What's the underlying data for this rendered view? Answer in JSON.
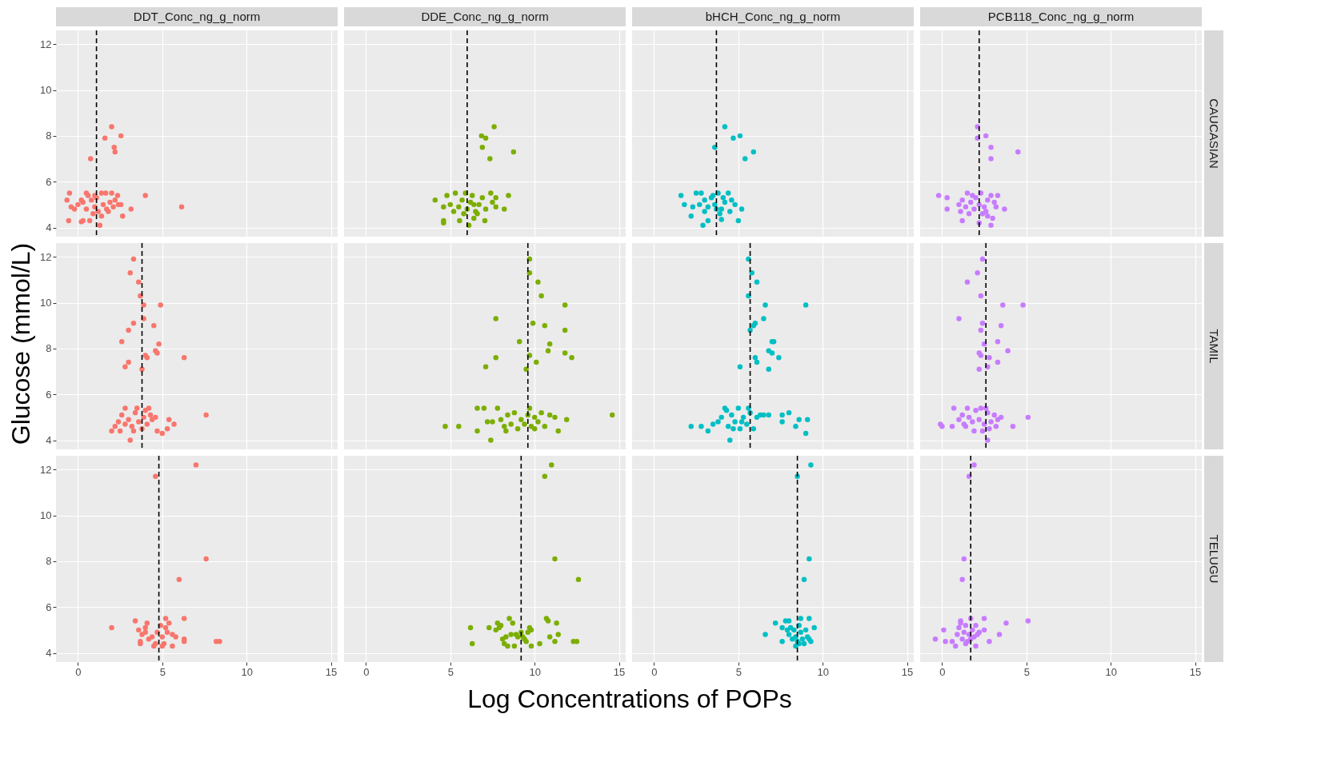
{
  "chart_data": [
    {
      "type": "scatter",
      "title": "DDT_Conc_ng_g_norm",
      "color": "#f8766d",
      "marker": "circle",
      "grid": true,
      "tick_labels": "y",
      "xlim": [
        -1.3,
        15.4
      ],
      "ylim": [
        3.6,
        12.6
      ],
      "xticks": [
        0,
        5,
        10,
        15
      ],
      "yticks": [
        4,
        6,
        8,
        10,
        12
      ],
      "ref_lines": [
        {
          "axis": "x",
          "value": 1.1,
          "color": "#000000",
          "line_style": "dashed"
        }
      ],
      "x": [
        2.0,
        1.6,
        2.55,
        2.15,
        2.2,
        0.75,
        -0.5,
        -0.65,
        -0.4,
        -0.55,
        0.2,
        0.3,
        0.5,
        0.7,
        1.3,
        4.0,
        6.15,
        2.65,
        3.15,
        2.55,
        2.35,
        2.0,
        1.4,
        1.65,
        0,
        0.3,
        0.5,
        0.8,
        1.0,
        1.1,
        1.2,
        1.5,
        1.7,
        1.9,
        2.1,
        2.2,
        0.9,
        1.4,
        0.6,
        1.8,
        2.4,
        -0.2,
        0.2,
        1.0
      ],
      "values": [
        8.4,
        7.9,
        8.0,
        7.5,
        7.3,
        7.0,
        5.5,
        5.2,
        4.9,
        4.3,
        4.25,
        4.3,
        5.5,
        4.3,
        4.1,
        5.4,
        4.9,
        4.5,
        4.8,
        5.0,
        5.4,
        5.5,
        5.5,
        5.5,
        5.0,
        5.1,
        4.8,
        5.2,
        4.9,
        5.3,
        4.7,
        5.0,
        4.8,
        5.1,
        4.9,
        5.2,
        4.6,
        4.5,
        5.4,
        4.7,
        5.0,
        4.8,
        5.2,
        5.4
      ]
    },
    {
      "type": "scatter",
      "title": "DDE_Conc_ng_g_norm",
      "color": "#7cae00",
      "marker": "circle",
      "grid": true,
      "tick_labels": false,
      "xlim": [
        -1.3,
        15.4
      ],
      "ylim": [
        3.6,
        12.6
      ],
      "xticks": [
        0,
        5,
        10,
        15
      ],
      "yticks": [
        4,
        6,
        8,
        10,
        12
      ],
      "ref_lines": [
        {
          "axis": "x",
          "value": 6.0,
          "color": "#000000",
          "line_style": "dashed"
        }
      ],
      "x": [
        7.6,
        6.85,
        7.1,
        6.9,
        7.35,
        8.75,
        4.1,
        4.6,
        4.6,
        5.55,
        6.1,
        7.05,
        8.45,
        8.2,
        7.7,
        7.4,
        6.4,
        4.8,
        5.0,
        5.3,
        5.5,
        5.7,
        5.9,
        6.0,
        6.2,
        6.3,
        6.5,
        6.7,
        6.9,
        7.1,
        7.5,
        7.7,
        4.6,
        5.2,
        5.8,
        6.4,
        6.6
      ],
      "values": [
        8.4,
        8.0,
        7.9,
        7.5,
        7.0,
        7.3,
        5.2,
        4.3,
        4.2,
        4.3,
        4.1,
        4.3,
        5.4,
        4.8,
        4.9,
        5.5,
        4.4,
        5.4,
        5.0,
        5.5,
        4.9,
        5.2,
        5.5,
        4.8,
        5.1,
        5.4,
        4.7,
        5.0,
        5.3,
        4.8,
        5.1,
        5.3,
        4.9,
        4.7,
        4.6,
        5.0,
        4.6
      ]
    },
    {
      "type": "scatter",
      "title": "bHCH_Conc_ng_g_norm",
      "color": "#00bfc4",
      "marker": "circle",
      "grid": true,
      "tick_labels": false,
      "xlim": [
        -1.3,
        15.4
      ],
      "ylim": [
        3.6,
        12.6
      ],
      "xticks": [
        0,
        5,
        10,
        15
      ],
      "yticks": [
        4,
        6,
        8,
        10,
        12
      ],
      "ref_lines": [
        {
          "axis": "x",
          "value": 3.7,
          "color": "#000000",
          "line_style": "dashed"
        }
      ],
      "x": [
        4.2,
        4.7,
        5.1,
        3.6,
        5.9,
        5.4,
        1.6,
        1.8,
        2.2,
        2.9,
        3.2,
        5.0,
        5.2,
        4.0,
        2.5,
        2.8,
        3.0,
        3.2,
        3.4,
        3.6,
        3.8,
        4.0,
        4.2,
        4.4,
        4.6,
        4.8,
        3.0,
        2.3,
        3.9,
        4.5,
        3.5,
        4.1,
        2.7,
        3.7
      ],
      "values": [
        8.4,
        7.9,
        8.0,
        7.5,
        7.3,
        7.0,
        5.4,
        5.0,
        4.5,
        4.1,
        4.3,
        4.3,
        4.8,
        4.35,
        5.5,
        5.5,
        5.2,
        4.9,
        5.3,
        5.0,
        5.5,
        4.8,
        5.1,
        5.5,
        5.2,
        5.0,
        4.7,
        4.9,
        4.6,
        4.7,
        5.4,
        5.3,
        5.0,
        4.8
      ]
    },
    {
      "type": "scatter",
      "title": "PCB118_Conc_ng_g_norm",
      "y2label": "CAUCASIAN",
      "color": "#c77cff",
      "marker": "circle",
      "grid": true,
      "tick_labels": false,
      "xlim": [
        -1.3,
        15.4
      ],
      "ylim": [
        3.6,
        12.6
      ],
      "xticks": [
        0,
        5,
        10,
        15
      ],
      "yticks": [
        4,
        6,
        8,
        10,
        12
      ],
      "ref_lines": [
        {
          "axis": "x",
          "value": 2.2,
          "color": "#000000",
          "line_style": "dashed"
        }
      ],
      "x": [
        2.1,
        2.1,
        2.6,
        2.9,
        4.5,
        2.9,
        -0.2,
        0.3,
        0.3,
        3.7,
        1.2,
        2.2,
        2.9,
        3.0,
        2.7,
        1.0,
        1.2,
        1.4,
        1.5,
        1.7,
        1.9,
        2.0,
        2.2,
        2.3,
        2.5,
        2.7,
        2.9,
        3.1,
        3.3,
        3.2,
        1.6,
        2.4,
        1.1,
        1.8,
        2.6
      ],
      "values": [
        8.4,
        7.9,
        8.0,
        7.5,
        7.3,
        7.0,
        5.4,
        5.3,
        4.8,
        4.8,
        4.3,
        4.2,
        4.1,
        4.4,
        4.5,
        5.0,
        5.2,
        4.9,
        5.5,
        5.1,
        4.8,
        5.3,
        5.0,
        5.5,
        4.9,
        5.2,
        5.4,
        5.1,
        5.4,
        4.9,
        4.6,
        4.6,
        4.7,
        5.4,
        4.7
      ]
    },
    {
      "type": "scatter",
      "ylabel": "Glucose (mmol/L)",
      "color": "#f8766d",
      "marker": "circle",
      "grid": true,
      "tick_labels": "y",
      "xlim": [
        -1.3,
        15.4
      ],
      "ylim": [
        3.6,
        12.6
      ],
      "xticks": [
        0,
        5,
        10,
        15
      ],
      "yticks": [
        4,
        6,
        8,
        10,
        12
      ],
      "ref_lines": [
        {
          "axis": "x",
          "value": 3.8,
          "color": "#000000",
          "line_style": "dashed"
        }
      ],
      "x": [
        3.3,
        3.1,
        3.6,
        3.7,
        3.9,
        4.9,
        3.9,
        3.3,
        3.0,
        4.5,
        2.6,
        4.8,
        4.6,
        4.7,
        4.0,
        4.1,
        6.3,
        3.0,
        2.8,
        3.8,
        7.6,
        2.0,
        3.1,
        5.0,
        5.7,
        5.3,
        5.4,
        4.7,
        2.2,
        2.4,
        2.6,
        2.8,
        2.8,
        3.0,
        3.2,
        3.4,
        3.5,
        3.6,
        3.8,
        3.9,
        4.0,
        4.1,
        4.3,
        4.4,
        4.2,
        3.3,
        4.6,
        2.5
      ],
      "values": [
        11.9,
        11.3,
        10.9,
        10.3,
        9.9,
        9.9,
        9.3,
        9.1,
        8.8,
        9.0,
        8.3,
        8.2,
        7.9,
        7.8,
        7.7,
        7.6,
        7.6,
        7.4,
        7.2,
        7.1,
        5.1,
        4.4,
        4.0,
        4.3,
        4.7,
        4.5,
        4.9,
        4.4,
        4.6,
        4.8,
        5.1,
        4.7,
        5.4,
        4.9,
        4.6,
        5.2,
        5.4,
        4.8,
        4.5,
        5.0,
        5.3,
        4.7,
        5.1,
        4.9,
        5.4,
        4.4,
        5.0,
        4.4
      ]
    },
    {
      "type": "scatter",
      "color": "#7cae00",
      "marker": "circle",
      "grid": true,
      "tick_labels": false,
      "xlim": [
        -1.3,
        15.4
      ],
      "ylim": [
        3.6,
        12.6
      ],
      "xticks": [
        0,
        5,
        10,
        15
      ],
      "yticks": [
        4,
        6,
        8,
        10,
        12
      ],
      "ref_lines": [
        {
          "axis": "x",
          "value": 9.6,
          "color": "#000000",
          "line_style": "dashed"
        }
      ],
      "x": [
        9.7,
        9.7,
        10.2,
        10.4,
        11.8,
        7.7,
        9.9,
        10.6,
        11.8,
        9.1,
        10.9,
        10.8,
        11.8,
        12.2,
        9.7,
        10.1,
        7.7,
        7.1,
        9.5,
        4.7,
        5.5,
        6.6,
        6.6,
        7.0,
        7.4,
        14.6,
        11.4,
        11.9,
        7.5,
        7.8,
        8.0,
        8.2,
        8.4,
        8.6,
        8.8,
        9.0,
        9.2,
        9.4,
        9.6,
        9.8,
        10.0,
        10.2,
        10.4,
        10.6,
        10.9,
        11.2,
        8.3,
        9.7,
        7.2,
        10.0
      ],
      "values": [
        11.9,
        11.3,
        10.9,
        10.3,
        9.9,
        9.3,
        9.1,
        9.0,
        8.8,
        8.3,
        8.2,
        7.9,
        7.8,
        7.6,
        7.7,
        7.4,
        7.6,
        7.2,
        7.1,
        4.6,
        4.6,
        4.4,
        5.4,
        5.4,
        4.0,
        5.1,
        4.4,
        4.9,
        4.8,
        5.4,
        4.9,
        4.6,
        5.1,
        4.7,
        5.2,
        4.5,
        4.9,
        4.7,
        5.1,
        4.6,
        5.0,
        4.8,
        5.2,
        4.6,
        5.1,
        5.0,
        4.4,
        5.4,
        4.8,
        4.5
      ]
    },
    {
      "type": "scatter",
      "color": "#00bfc4",
      "marker": "circle",
      "grid": true,
      "tick_labels": false,
      "xlim": [
        -1.3,
        15.4
      ],
      "ylim": [
        3.6,
        12.6
      ],
      "xticks": [
        0,
        5,
        10,
        15
      ],
      "yticks": [
        4,
        6,
        8,
        10,
        12
      ],
      "ref_lines": [
        {
          "axis": "x",
          "value": 5.7,
          "color": "#000000",
          "line_style": "dashed"
        }
      ],
      "x": [
        5.6,
        5.8,
        6.1,
        5.6,
        6.6,
        9.0,
        6.5,
        6.0,
        5.9,
        5.7,
        7.0,
        7.1,
        6.8,
        7.0,
        7.4,
        6.0,
        6.1,
        5.1,
        6.8,
        2.2,
        2.8,
        3.2,
        3.5,
        4.5,
        9.0,
        9.1,
        8.4,
        8.6,
        7.6,
        7.6,
        8.0,
        6.8,
        3.8,
        4.0,
        4.2,
        4.4,
        4.6,
        4.8,
        5.0,
        5.1,
        5.3,
        5.5,
        5.7,
        5.9,
        6.1,
        6.3,
        6.5,
        4.7,
        5.2,
        4.3,
        5.6
      ],
      "values": [
        11.9,
        11.3,
        10.9,
        10.3,
        9.9,
        9.9,
        9.3,
        9.1,
        9.0,
        8.8,
        8.3,
        8.3,
        7.9,
        7.8,
        7.6,
        7.6,
        7.4,
        7.2,
        7.1,
        4.6,
        4.6,
        4.4,
        4.7,
        4.0,
        4.3,
        4.9,
        4.6,
        4.9,
        4.8,
        5.1,
        5.2,
        5.1,
        4.8,
        5.0,
        5.4,
        4.6,
        5.1,
        4.8,
        5.4,
        4.5,
        5.0,
        4.7,
        5.2,
        4.5,
        5.0,
        5.1,
        5.1,
        4.5,
        4.8,
        5.3,
        5.4
      ]
    },
    {
      "type": "scatter",
      "y2label": "TAMIL",
      "color": "#c77cff",
      "marker": "circle",
      "grid": true,
      "tick_labels": false,
      "xlim": [
        -1.3,
        15.4
      ],
      "ylim": [
        3.6,
        12.6
      ],
      "xticks": [
        0,
        5,
        10,
        15
      ],
      "yticks": [
        4,
        6,
        8,
        10,
        12
      ],
      "ref_lines": [
        {
          "axis": "x",
          "value": 2.6,
          "color": "#000000",
          "line_style": "dashed"
        }
      ],
      "x": [
        2.4,
        2.1,
        1.5,
        2.3,
        3.6,
        4.8,
        1.0,
        2.4,
        3.5,
        2.3,
        2.5,
        3.3,
        3.9,
        2.2,
        2.3,
        2.8,
        3.3,
        2.2,
        2.7,
        -0.1,
        0,
        0.6,
        5.1,
        4.2,
        2.7,
        1.9,
        0.7,
        1.5,
        1.0,
        1.2,
        1.4,
        1.6,
        1.8,
        2.0,
        2.2,
        2.3,
        2.5,
        2.7,
        2.9,
        3.1,
        3.3,
        3.5,
        2.4,
        2.8,
        1.3,
        2.6,
        3.2
      ],
      "values": [
        11.9,
        11.3,
        10.9,
        10.3,
        9.9,
        9.9,
        9.3,
        9.1,
        9.0,
        8.8,
        8.2,
        8.3,
        7.9,
        7.8,
        7.7,
        7.6,
        7.4,
        7.1,
        7.2,
        4.7,
        4.6,
        4.6,
        5.0,
        4.6,
        4.0,
        4.4,
        5.4,
        5.4,
        4.9,
        5.1,
        4.6,
        5.0,
        4.8,
        5.3,
        4.9,
        5.4,
        4.7,
        5.2,
        4.8,
        5.1,
        4.9,
        5.0,
        4.4,
        4.5,
        4.7,
        5.4,
        4.6
      ]
    },
    {
      "type": "scatter",
      "color": "#f8766d",
      "marker": "circle",
      "grid": true,
      "xlim": [
        -1.3,
        15.4
      ],
      "ylim": [
        3.6,
        12.6
      ],
      "xticks": [
        0,
        5,
        10,
        15
      ],
      "yticks": [
        4,
        6,
        8,
        10,
        12
      ],
      "ref_lines": [
        {
          "axis": "x",
          "value": 4.8,
          "color": "#000000",
          "line_style": "dashed"
        }
      ],
      "x": [
        7.0,
        4.6,
        7.6,
        6.0,
        2.0,
        3.4,
        6.3,
        8.2,
        8.4,
        5.2,
        5.6,
        3.7,
        3.6,
        3.8,
        4.0,
        4.2,
        4.1,
        4.4,
        4.6,
        4.7,
        4.9,
        5.0,
        5.1,
        5.3,
        5.4,
        5.6,
        5.8,
        6.3,
        6.3,
        4.5,
        5.0,
        5.2,
        3.7,
        4.0
      ],
      "values": [
        12.2,
        11.7,
        8.1,
        7.2,
        5.1,
        5.4,
        5.5,
        4.5,
        4.5,
        5.5,
        4.3,
        4.4,
        5.0,
        4.8,
        5.1,
        4.6,
        5.3,
        4.7,
        4.4,
        4.9,
        5.2,
        4.7,
        4.4,
        4.9,
        5.3,
        4.8,
        4.7,
        4.6,
        4.5,
        4.3,
        4.3,
        5.1,
        4.5,
        4.9
      ]
    },
    {
      "type": "scatter",
      "xlabel": "Log Concentrations of POPs",
      "color": "#7cae00",
      "marker": "circle",
      "grid": true,
      "tick_labels": "x",
      "xlim": [
        -1.3,
        15.4
      ],
      "ylim": [
        3.6,
        12.6
      ],
      "xticks": [
        0,
        5,
        10,
        15
      ],
      "yticks": [
        4,
        6,
        8,
        10,
        12
      ],
      "ref_lines": [
        {
          "axis": "x",
          "value": 9.2,
          "color": "#000000",
          "line_style": "dashed"
        }
      ],
      "x": [
        11.0,
        10.6,
        11.2,
        12.6,
        6.2,
        6.3,
        7.3,
        12.3,
        12.5,
        11.4,
        11.3,
        10.9,
        11.2,
        10.8,
        10.7,
        10.3,
        9.8,
        8.8,
        7.7,
        7.8,
        8.0,
        8.2,
        8.3,
        8.5,
        8.6,
        8.7,
        8.9,
        9.0,
        9.2,
        9.4,
        9.5,
        9.6,
        9.7,
        9.8,
        8.1,
        8.4,
        7.9,
        9.3
      ],
      "values": [
        12.2,
        11.7,
        8.1,
        7.2,
        5.1,
        4.4,
        5.1,
        4.5,
        4.5,
        4.8,
        5.3,
        4.7,
        4.5,
        5.4,
        5.5,
        4.4,
        4.3,
        4.3,
        5.0,
        5.3,
        5.2,
        4.4,
        4.7,
        5.5,
        4.8,
        5.3,
        4.8,
        4.7,
        4.9,
        4.6,
        4.5,
        4.9,
        5.1,
        5.0,
        4.6,
        4.3,
        5.1,
        4.7
      ]
    },
    {
      "type": "scatter",
      "color": "#00bfc4",
      "marker": "circle",
      "grid": true,
      "tick_labels": "x",
      "xlim": [
        -1.3,
        15.4
      ],
      "ylim": [
        3.6,
        12.6
      ],
      "xticks": [
        0,
        5,
        10,
        15
      ],
      "yticks": [
        4,
        6,
        8,
        10,
        12
      ],
      "ref_lines": [
        {
          "axis": "x",
          "value": 8.5,
          "color": "#000000",
          "line_style": "dashed"
        }
      ],
      "x": [
        9.3,
        8.5,
        9.2,
        8.9,
        6.6,
        7.2,
        9.5,
        9.2,
        7.6,
        9.3,
        7.8,
        8.0,
        7.6,
        7.9,
        8.0,
        8.2,
        8.3,
        8.4,
        8.5,
        8.6,
        8.7,
        8.8,
        9.0,
        9.1,
        8.9,
        8.4,
        8.7,
        9.2,
        8.1,
        8.6
      ],
      "values": [
        12.2,
        11.7,
        8.1,
        7.2,
        4.8,
        5.3,
        5.1,
        5.5,
        4.5,
        4.5,
        5.4,
        5.4,
        5.1,
        5.0,
        4.8,
        4.6,
        5.0,
        4.7,
        4.5,
        5.2,
        4.9,
        4.6,
        5.0,
        4.7,
        4.4,
        4.3,
        5.5,
        4.6,
        5.1,
        4.4
      ]
    },
    {
      "type": "scatter",
      "y2label": "TELUGU",
      "color": "#c77cff",
      "marker": "circle",
      "grid": true,
      "tick_labels": "x",
      "xlim": [
        -1.3,
        15.4
      ],
      "ylim": [
        3.6,
        12.6
      ],
      "xticks": [
        0,
        5,
        10,
        15
      ],
      "yticks": [
        4,
        6,
        8,
        10,
        12
      ],
      "ref_lines": [
        {
          "axis": "x",
          "value": 1.7,
          "color": "#000000",
          "line_style": "dashed"
        }
      ],
      "x": [
        1.9,
        1.6,
        1.3,
        1.2,
        5.1,
        3.8,
        2.5,
        3.4,
        2.8,
        -0.4,
        0.1,
        0.2,
        0.6,
        0.8,
        1.1,
        0.9,
        1.0,
        1.2,
        1.3,
        1.4,
        1.5,
        1.6,
        1.7,
        1.8,
        1.9,
        2.0,
        2.1,
        2.2,
        2.5,
        1.4,
        2.0,
        1.1,
        1.7
      ],
      "values": [
        12.2,
        11.7,
        8.1,
        7.2,
        5.4,
        5.3,
        5.5,
        4.8,
        4.5,
        4.6,
        5.0,
        4.5,
        4.5,
        4.3,
        5.4,
        4.8,
        5.1,
        4.6,
        4.9,
        5.2,
        4.5,
        4.8,
        5.5,
        5.0,
        4.7,
        5.2,
        4.8,
        4.9,
        5.0,
        4.4,
        4.3,
        5.3,
        4.6
      ]
    }
  ]
}
